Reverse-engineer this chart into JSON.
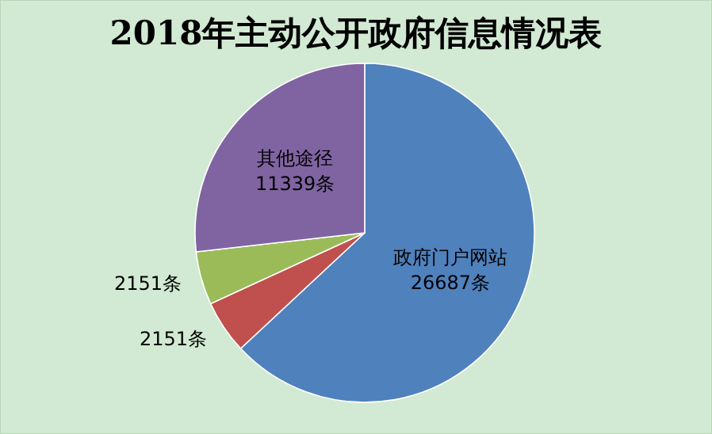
{
  "chart_data": {
    "type": "pie",
    "title": "2018年主动公开政府信息情况表",
    "categories": [
      "政府门户网站",
      null,
      null,
      "其他途径"
    ],
    "values": [
      26687,
      2151,
      2151,
      11339
    ],
    "value_labels": [
      "26687条",
      "2151条",
      "2151条",
      "11339条"
    ],
    "colors": [
      "#4f81bd",
      "#c0504d",
      "#9bbb59",
      "#8064a2"
    ]
  }
}
